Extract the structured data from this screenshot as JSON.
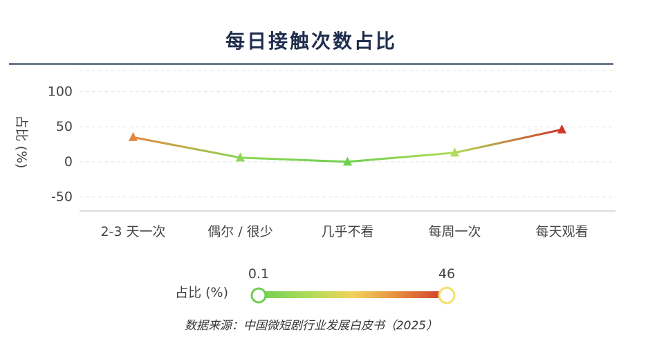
{
  "chart_data": {
    "type": "line",
    "title": "每日接触次数占比",
    "ylabel": "占比 (%)",
    "xlabel": "",
    "categories": [
      "2-3 天一次",
      "偶尔 / 很少",
      "几乎不看",
      "每周一次",
      "每天观看"
    ],
    "series": [
      {
        "values": [
          35,
          6,
          0.1,
          13,
          46
        ]
      }
    ],
    "ylim": [
      -70,
      130
    ],
    "yticks": [
      100,
      50,
      0,
      -50
    ],
    "grid": true,
    "visual_map": {
      "label": "占比 (%)",
      "min": 0.1,
      "max": 46,
      "min_label": "0.1",
      "max_label": "46",
      "colors": [
        "#6fcf4f",
        "#a9dc5a",
        "#f2d35a",
        "#e58a3c",
        "#d1372b"
      ]
    },
    "source": "数据来源：中国微短剧行业发展白皮书（2025）"
  }
}
